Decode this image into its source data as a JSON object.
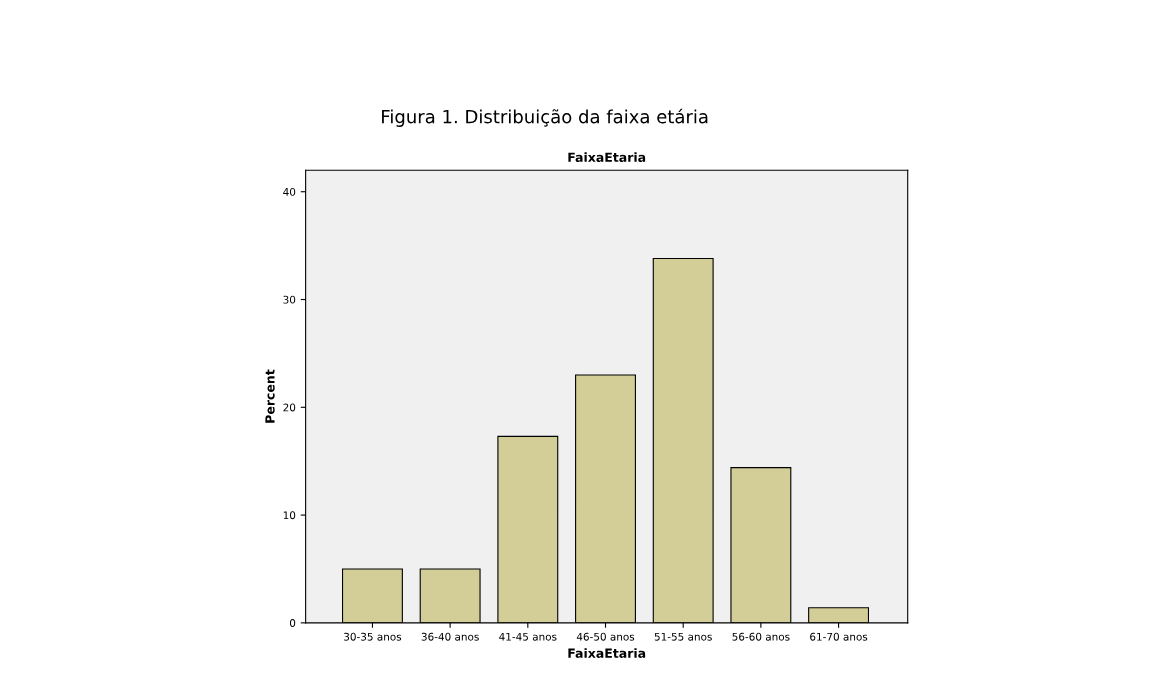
{
  "chart_data": {
    "type": "bar",
    "title": "Figura 1. Distribuição da faixa etária",
    "subtitle": "FaixaEtaria",
    "xlabel": "FaixaEtaria",
    "ylabel": "Percent",
    "categories": [
      "30-35 anos",
      "36-40 anos",
      "41-45 anos",
      "46-50 anos",
      "51-55 anos",
      "56-60 anos",
      "61-70 anos"
    ],
    "values": [
      5.0,
      5.0,
      17.3,
      23.0,
      33.8,
      14.4,
      1.4
    ],
    "color": "#d3ce97",
    "ylim": [
      0,
      42
    ],
    "yticks": [
      0,
      10,
      20,
      30,
      40
    ],
    "grid": false
  }
}
